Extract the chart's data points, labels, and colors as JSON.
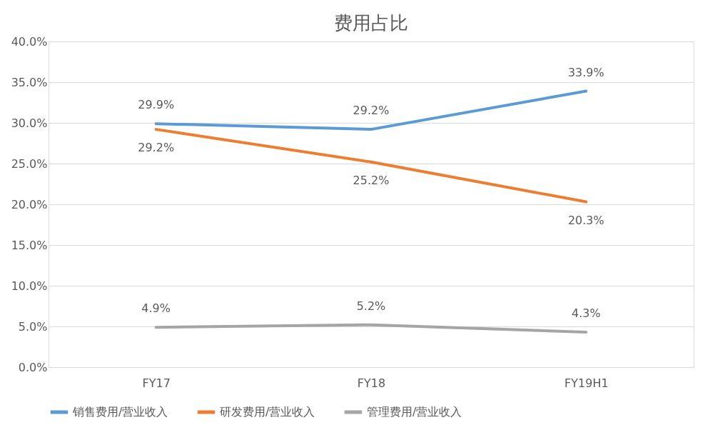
{
  "chart_data": {
    "type": "line",
    "title": "费用占比",
    "categories": [
      "FY17",
      "FY18",
      "FY19H1"
    ],
    "series": [
      {
        "name": "销售费用/营业收入",
        "color": "#5b9bd5",
        "values": [
          29.9,
          29.2,
          33.9
        ],
        "value_labels": [
          "29.9%",
          "29.2%",
          "33.9%"
        ]
      },
      {
        "name": "研发费用/营业收入",
        "color": "#ed7d31",
        "values": [
          29.2,
          25.2,
          20.3
        ],
        "value_labels": [
          "29.2%",
          "25.2%",
          "20.3%"
        ]
      },
      {
        "name": "管理费用/营业收入",
        "color": "#a5a5a5",
        "values": [
          4.9,
          5.2,
          4.3
        ],
        "value_labels": [
          "4.9%",
          "5.2%",
          "4.3%"
        ]
      }
    ],
    "ylim": [
      0,
      40
    ],
    "yticks": [
      {
        "value": 0,
        "label": "0.0%"
      },
      {
        "value": 5,
        "label": "5.0%"
      },
      {
        "value": 10,
        "label": "10.0%"
      },
      {
        "value": 15,
        "label": "15.0%"
      },
      {
        "value": 20,
        "label": "20.0%"
      },
      {
        "value": 25,
        "label": "25.0%"
      },
      {
        "value": 30,
        "label": "30.0%"
      },
      {
        "value": 35,
        "label": "35.0%"
      },
      {
        "value": 40,
        "label": "40.0%"
      }
    ],
    "grid": "y",
    "legend": "bottom",
    "marker": "none",
    "line_style": "solid"
  }
}
